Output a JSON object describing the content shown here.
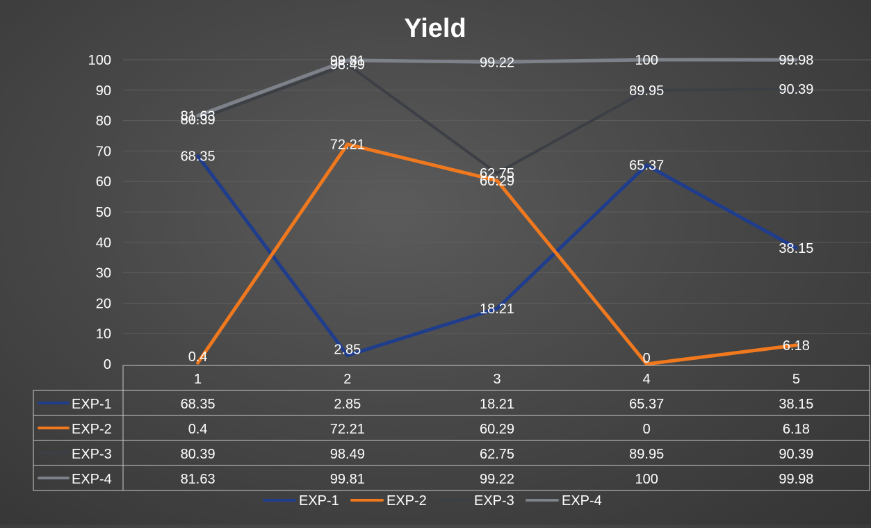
{
  "chart_data": {
    "type": "line",
    "title": "Yield",
    "categories": [
      "1",
      "2",
      "3",
      "4",
      "5"
    ],
    "ylim": [
      0,
      100
    ],
    "yticks": [
      0,
      10,
      20,
      30,
      40,
      50,
      60,
      70,
      80,
      90,
      100
    ],
    "grid": true,
    "legend": "bottom",
    "data_table": true,
    "series": [
      {
        "name": "EXP-1",
        "values": [
          68.35,
          2.85,
          18.21,
          65.37,
          38.15
        ],
        "color": "#1f3d8c"
      },
      {
        "name": "EXP-2",
        "values": [
          0.4,
          72.21,
          60.29,
          0,
          6.18
        ],
        "color": "#f0781e"
      },
      {
        "name": "EXP-3",
        "values": [
          80.39,
          98.49,
          62.75,
          89.95,
          90.39
        ],
        "color": "#3c3f45"
      },
      {
        "name": "EXP-4",
        "values": [
          81.63,
          99.81,
          99.22,
          100,
          99.98
        ],
        "color": "#7d8189"
      }
    ]
  }
}
